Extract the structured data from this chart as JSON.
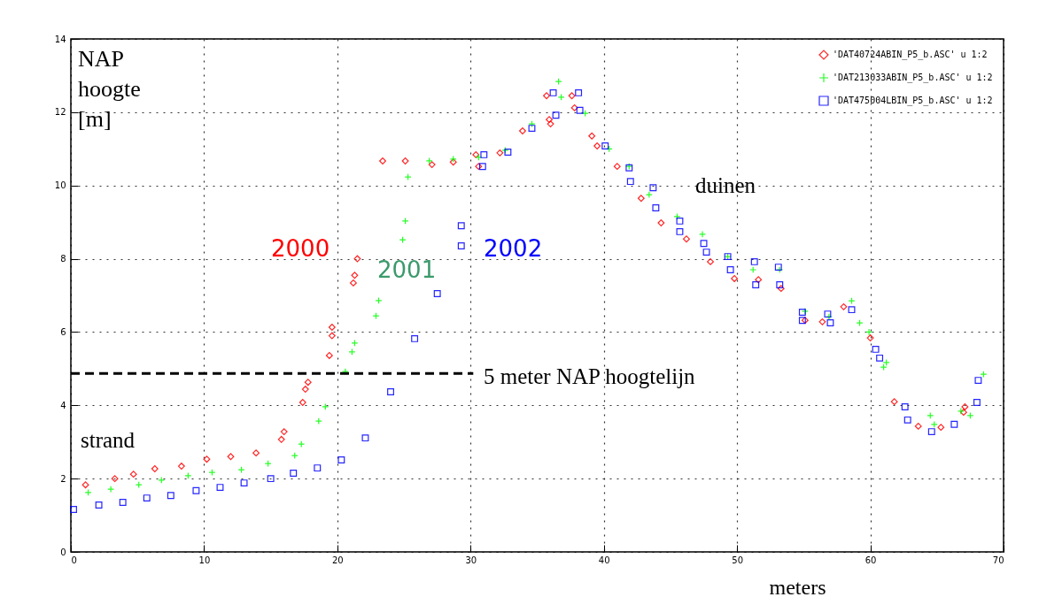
{
  "chart_data": {
    "type": "scatter",
    "xlabel": "meters",
    "ylabel": "NAP hoogte [m]",
    "xlim": [
      0,
      70
    ],
    "xticks": [
      0,
      10,
      20,
      30,
      40,
      50,
      60,
      70
    ],
    "ylim": [
      0,
      14
    ],
    "yticks": [
      0,
      2,
      4,
      6,
      8,
      10,
      12,
      14
    ],
    "grid": true,
    "legend": "top right",
    "annotations": [
      "2000",
      "2001",
      "2002",
      "5 meter NAP hoogtelijn",
      "duinen",
      "strand"
    ],
    "series": [
      {
        "name": "'DAT40724ABIN_P5_b.ASC' u 1:2",
        "color": "#ff0000",
        "marker": "diamond",
        "x": [
          1.1,
          3.3,
          4.7,
          6.3,
          8.3,
          10.2,
          12.0,
          13.9,
          15.8,
          16.0,
          17.4,
          17.6,
          17.8,
          19.4,
          19.6,
          19.6,
          21.2,
          21.3,
          21.5,
          23.4,
          25.1,
          27.1,
          28.7,
          30.4,
          30.6,
          32.2,
          33.9,
          35.7,
          35.9,
          36.0,
          37.6,
          37.8,
          39.1,
          39.5,
          41.0,
          42.8,
          44.3,
          46.2,
          48.0,
          49.8,
          51.6,
          53.3,
          55.1,
          56.4,
          58.0,
          60.0,
          61.8,
          63.6,
          65.3,
          67.0,
          67.1
        ],
        "values": [
          1.83,
          2.0,
          2.12,
          2.27,
          2.34,
          2.53,
          2.6,
          2.7,
          3.07,
          3.28,
          4.08,
          4.44,
          4.63,
          5.36,
          5.9,
          6.13,
          7.34,
          7.55,
          8.0,
          10.67,
          10.67,
          10.57,
          10.64,
          10.84,
          10.52,
          10.89,
          11.49,
          12.45,
          11.8,
          11.68,
          12.45,
          12.12,
          11.35,
          11.08,
          10.52,
          9.65,
          8.98,
          8.54,
          7.92,
          7.46,
          7.43,
          7.19,
          6.32,
          6.28,
          6.69,
          5.84,
          4.1,
          3.43,
          3.4,
          3.81,
          3.96
        ]
      },
      {
        "name": "'DAT213033ABIN_P5_b.ASC' u 1:2",
        "color": "#00ff00",
        "marker": "cross",
        "x": [
          1.3,
          3.0,
          5.1,
          6.8,
          8.8,
          10.6,
          12.8,
          14.8,
          16.8,
          17.3,
          18.6,
          19.1,
          20.6,
          21.1,
          21.3,
          22.9,
          23.1,
          24.9,
          25.1,
          25.3,
          26.9,
          28.7,
          30.6,
          32.6,
          34.6,
          36.6,
          36.8,
          38.6,
          40.4,
          41.9,
          43.4,
          45.5,
          47.4,
          49.3,
          51.2,
          53.2,
          55.1,
          56.9,
          58.6,
          59.2,
          59.9,
          61.0,
          61.2,
          64.5,
          64.8,
          66.8,
          67.5,
          68.5
        ],
        "values": [
          1.62,
          1.71,
          1.83,
          1.96,
          2.08,
          2.17,
          2.24,
          2.41,
          2.63,
          2.94,
          3.57,
          3.96,
          4.92,
          5.46,
          5.7,
          6.44,
          6.86,
          8.52,
          9.03,
          10.23,
          10.67,
          10.72,
          10.77,
          10.96,
          11.68,
          12.84,
          12.41,
          11.97,
          11.0,
          10.52,
          9.75,
          9.15,
          8.67,
          8.06,
          7.7,
          7.7,
          6.57,
          6.42,
          6.85,
          6.25,
          6.0,
          5.04,
          5.17,
          3.72,
          3.48,
          3.84,
          3.72,
          4.85
        ]
      },
      {
        "name": "'DAT475004LBIN_P5_b.ASC' u 1:2",
        "color": "#0000ff",
        "marker": "square",
        "x": [
          0.2,
          2.1,
          3.9,
          5.7,
          7.5,
          9.4,
          11.2,
          13.0,
          15.0,
          16.7,
          18.5,
          20.3,
          22.1,
          24.0,
          25.8,
          27.5,
          29.3,
          29.3,
          30.9,
          31.0,
          32.8,
          34.6,
          36.2,
          36.4,
          38.1,
          38.2,
          40.1,
          41.9,
          42.0,
          43.7,
          43.9,
          45.7,
          45.7,
          47.5,
          47.7,
          49.3,
          49.5,
          51.3,
          51.4,
          53.1,
          53.2,
          54.9,
          54.9,
          56.8,
          57.0,
          58.6,
          60.4,
          60.7,
          62.6,
          62.8,
          64.6,
          66.3,
          68.1,
          68.0
        ],
        "values": [
          1.16,
          1.28,
          1.35,
          1.47,
          1.54,
          1.67,
          1.76,
          1.88,
          2.0,
          2.15,
          2.29,
          2.51,
          3.11,
          4.37,
          5.82,
          7.05,
          8.35,
          8.9,
          10.52,
          10.84,
          10.91,
          11.56,
          12.53,
          11.92,
          12.53,
          12.05,
          11.08,
          10.48,
          10.11,
          9.94,
          9.39,
          9.03,
          8.74,
          8.42,
          8.18,
          8.06,
          7.7,
          7.92,
          7.29,
          7.77,
          7.29,
          6.54,
          6.32,
          6.49,
          6.25,
          6.61,
          5.53,
          5.29,
          3.96,
          3.6,
          3.28,
          3.48,
          4.68,
          4.08
        ]
      },
      {
        "type": "line",
        "color": "#000000",
        "line_style": "dashed",
        "x": [
          0,
          30.2
        ],
        "values": [
          4.87,
          4.87
        ]
      }
    ]
  }
}
